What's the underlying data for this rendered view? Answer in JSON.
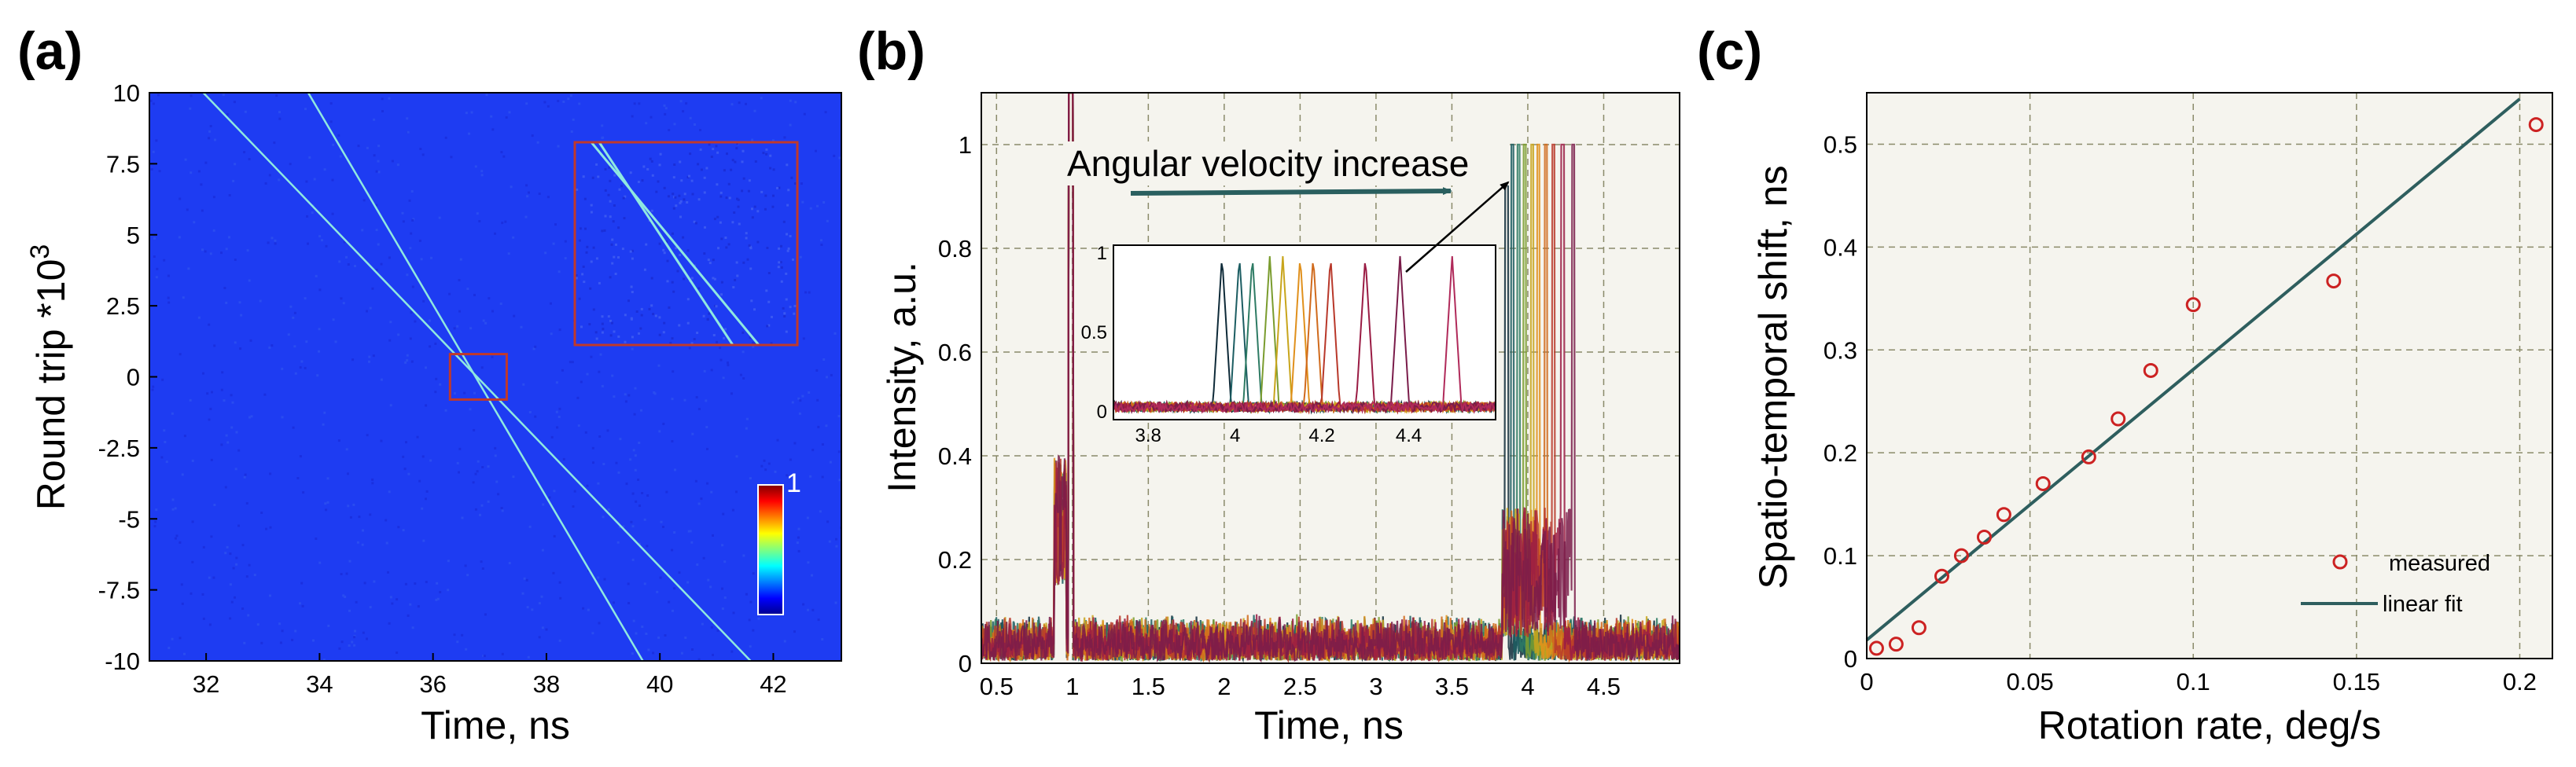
{
  "colors": {
    "heatmap_bg": "#1e3cf2",
    "trace": "#8fe8e0",
    "zoom_box": "#c0392b",
    "plot_bg": "#f5f4ee",
    "grid": "#8a8a6a",
    "fit_line": "#2e5e5e",
    "markers": "#cc2222",
    "arrow": "#2a5f5f"
  },
  "chart_data": [
    {
      "panel": "(a)",
      "type": "heatmap",
      "xlabel": "Time, ns",
      "ylabel_main": "Round trip *10",
      "ylabel_sup": "3",
      "xlim": [
        31,
        43.2
      ],
      "ylim": [
        -10,
        10
      ],
      "xticks": [
        32,
        34,
        36,
        38,
        40,
        42
      ],
      "xtick_labels": [
        "32",
        "34",
        "36",
        "38",
        "40",
        "42"
      ],
      "yticks": [
        10,
        7.5,
        5,
        2.5,
        0,
        -2.5,
        -5,
        -7.5,
        -10
      ],
      "ytick_labels": [
        "10",
        "7.5",
        "5",
        "2.5",
        "0",
        "-2.5",
        "-5",
        "-7.5",
        "-10"
      ],
      "colorbar_label": "1",
      "traces": [
        {
          "x": [
            31.95,
            41.6
          ],
          "y": [
            10,
            -10
          ]
        },
        {
          "x": [
            33.8,
            39.7
          ],
          "y": [
            10,
            -10
          ]
        }
      ],
      "zoom_region": {
        "x": [
          36.3,
          37.3
        ],
        "y": [
          -0.8,
          0.8
        ]
      }
    },
    {
      "panel": "(b)",
      "type": "line",
      "xlabel": "Time, ns",
      "ylabel": "Intensity, a.u.",
      "xlim": [
        0.4,
        5
      ],
      "ylim": [
        0,
        1.1
      ],
      "xticks": [
        0.5,
        1,
        1.5,
        2,
        2.5,
        3,
        3.5,
        4,
        4.5
      ],
      "xtick_labels": [
        "0.5",
        "1",
        "1.5",
        "2",
        "2.5",
        "3",
        "3.5",
        "4",
        "4.5"
      ],
      "yticks": [
        0,
        0.2,
        0.4,
        0.6,
        0.8,
        1
      ],
      "ytick_labels": [
        "0",
        "0.2",
        "0.4",
        "0.6",
        "0.8",
        "1"
      ],
      "annotation": "Angular velocity increase",
      "series_colors": [
        "#0e2a38",
        "#1c5d62",
        "#2e7b64",
        "#7a9c2e",
        "#c8a51c",
        "#e0901c",
        "#d06a1c",
        "#b8382a",
        "#9a1c44",
        "#7a1c4a"
      ],
      "main_peaks_x": [
        3.86,
        3.9,
        3.94,
        3.98,
        4.03,
        4.07,
        4.12,
        4.17,
        4.23,
        4.3
      ],
      "reference_peak_x": 0.99,
      "inset": {
        "xlim": [
          3.72,
          4.6
        ],
        "ylim": [
          0,
          1
        ],
        "xticks": [
          3.8,
          4,
          4.2,
          4.4
        ],
        "xtick_labels": [
          "3.8",
          "4",
          "4.2",
          "4.4"
        ],
        "yticks": [
          0,
          0.5,
          1
        ],
        "ytick_labels": [
          "0",
          "0.5",
          "1"
        ],
        "peaks_x": [
          3.97,
          4.01,
          4.04,
          4.08,
          4.11,
          4.15,
          4.18,
          4.22,
          4.3,
          4.38,
          4.5
        ]
      }
    },
    {
      "panel": "(c)",
      "type": "scatter",
      "xlabel": "Rotation rate, deg/s",
      "ylabel": "Spatio-temporal shift, ns",
      "xlim": [
        0,
        0.21
      ],
      "ylim": [
        0,
        0.55
      ],
      "xticks": [
        0,
        0.05,
        0.1,
        0.15,
        0.2
      ],
      "xtick_labels": [
        "0",
        "0.05",
        "0.1",
        "0.15",
        "0.2"
      ],
      "yticks": [
        0,
        0.1,
        0.2,
        0.3,
        0.4,
        0.5
      ],
      "ytick_labels": [
        "0",
        "0.1",
        "0.2",
        "0.3",
        "0.4",
        "0.5"
      ],
      "series": [
        {
          "name": "measured",
          "x": [
            0.003,
            0.009,
            0.016,
            0.023,
            0.029,
            0.036,
            0.042,
            0.054,
            0.068,
            0.077,
            0.087,
            0.1,
            0.143,
            0.205
          ],
          "y": [
            0.01,
            0.014,
            0.03,
            0.08,
            0.1,
            0.118,
            0.14,
            0.17,
            0.196,
            0.233,
            0.28,
            0.344,
            0.367,
            0.519
          ]
        },
        {
          "name": "linear fit",
          "x": [
            0,
            0.2
          ],
          "y": [
            0.018,
            0.544
          ]
        }
      ],
      "legend": {
        "marker_label": "measured",
        "line_label": "linear fit",
        "placement": "bottom-right"
      }
    }
  ]
}
